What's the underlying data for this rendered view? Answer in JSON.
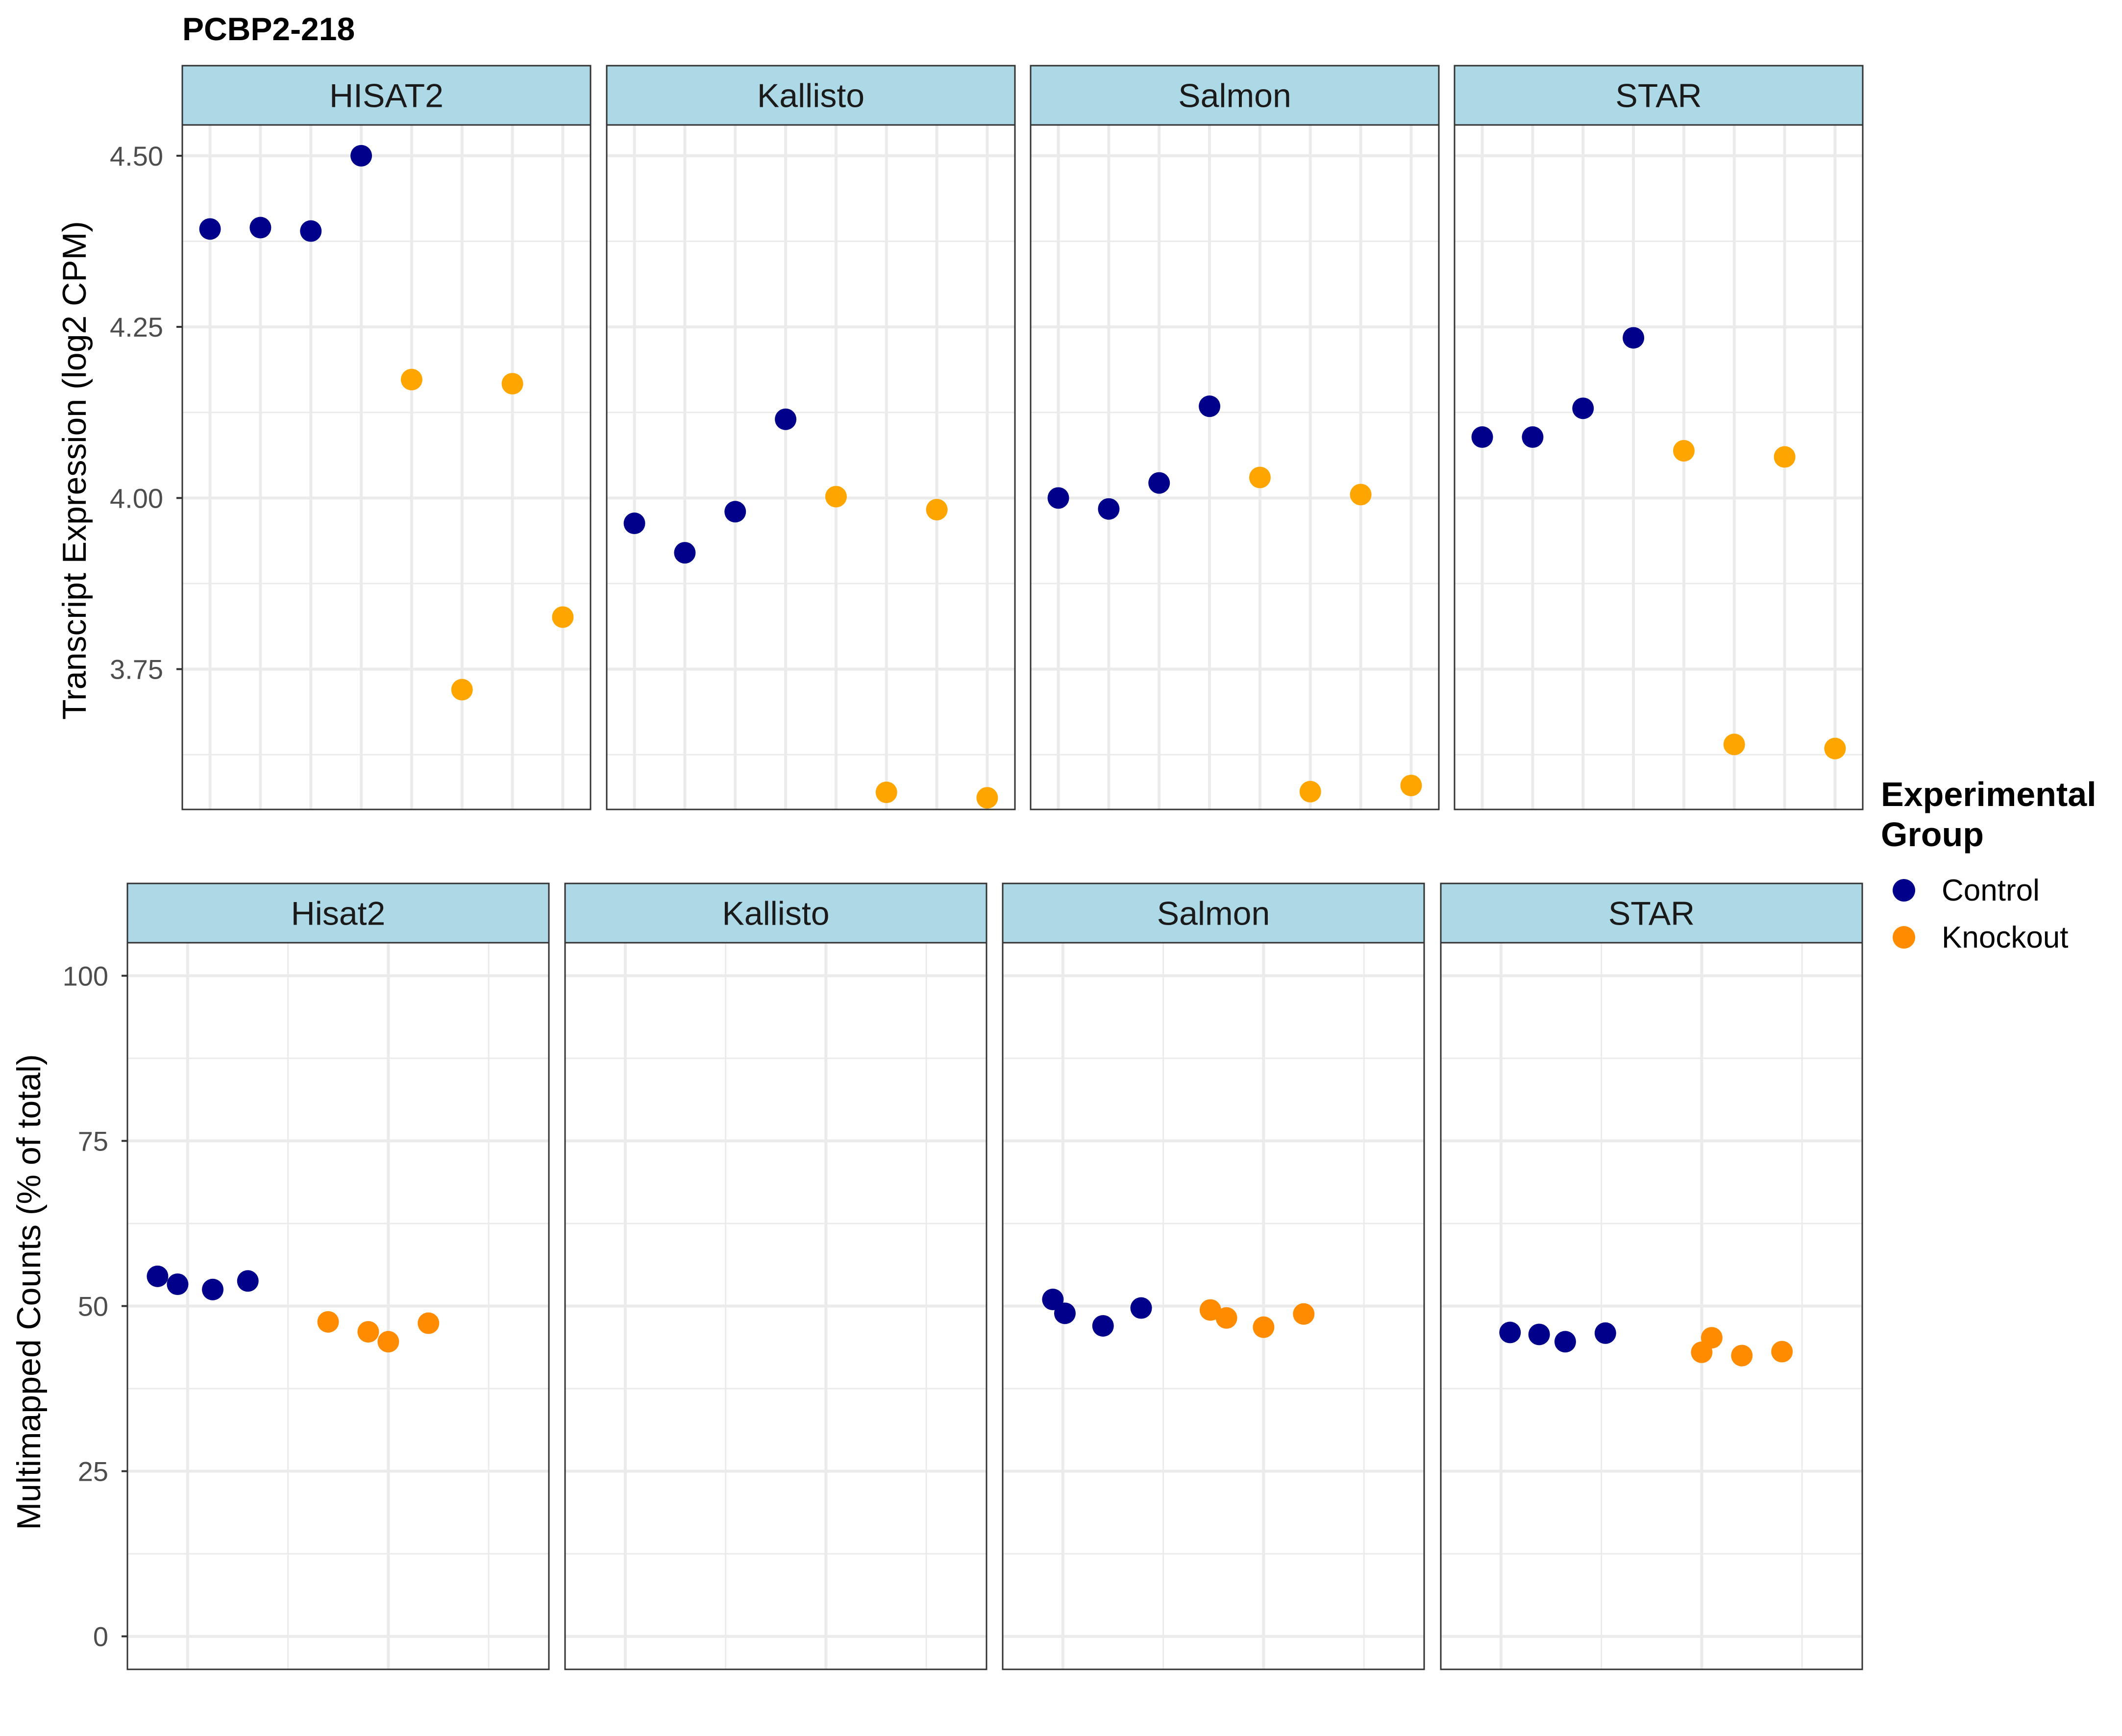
{
  "title": "PCBP2-218",
  "colors": {
    "control": "#00008B",
    "knockout_top": "#FFA500",
    "knockout_bottom": "#FF8C00",
    "strip_fill": "#ADD8E6",
    "grid": "#EBEBEB",
    "panel_border": "#333333"
  },
  "legend": {
    "title_line1": "Experimental",
    "title_line2": "Group",
    "items": [
      {
        "label": "Control",
        "color": "#00008B"
      },
      {
        "label": "Knockout",
        "color": "#FF8C00"
      }
    ]
  },
  "chart_data": [
    {
      "type": "scatter",
      "ylabel": "Transcript Expression (log2 CPM)",
      "yticks": [
        "3.75",
        "4.00",
        "4.25",
        "4.50"
      ],
      "ylim": [
        3.545,
        4.545
      ],
      "xlim": [
        0.45,
        8.55
      ],
      "grid": true,
      "facets": [
        {
          "label": "HISAT2",
          "control": [
            [
              1,
              4.393
            ],
            [
              2,
              4.395
            ],
            [
              3,
              4.39
            ],
            [
              4,
              4.5
            ]
          ],
          "knockout": [
            [
              5,
              4.173
            ],
            [
              6,
              3.72
            ],
            [
              7,
              4.167
            ],
            [
              8,
              3.826
            ]
          ]
        },
        {
          "label": "Kallisto",
          "control": [
            [
              1,
              3.963
            ],
            [
              2,
              3.92
            ],
            [
              3,
              3.98
            ],
            [
              4,
              4.115
            ]
          ],
          "knockout": [
            [
              5,
              4.002
            ],
            [
              6,
              3.57
            ],
            [
              7,
              3.983
            ],
            [
              8,
              3.562
            ]
          ]
        },
        {
          "label": "Salmon",
          "control": [
            [
              1,
              4.0
            ],
            [
              2,
              3.984
            ],
            [
              3,
              4.022
            ],
            [
              4,
              4.134
            ]
          ],
          "knockout": [
            [
              5,
              4.03
            ],
            [
              6,
              3.571
            ],
            [
              7,
              4.005
            ],
            [
              8,
              3.58
            ]
          ]
        },
        {
          "label": "STAR",
          "control": [
            [
              1,
              4.089
            ],
            [
              2,
              4.089
            ],
            [
              3,
              4.131
            ],
            [
              4,
              4.234
            ]
          ],
          "knockout": [
            [
              5,
              4.069
            ],
            [
              6,
              3.64
            ],
            [
              7,
              4.06
            ],
            [
              8,
              3.634
            ]
          ]
        }
      ]
    },
    {
      "type": "scatter",
      "ylabel": "Multimapped Counts (% of total)",
      "yticks": [
        "0",
        "25",
        "50",
        "75",
        "100"
      ],
      "ylim": [
        -5,
        105
      ],
      "xlim": [
        0.4,
        4.6
      ],
      "grid": true,
      "facets": [
        {
          "label": "Hisat2",
          "control": [
            [
              0.7,
              54.5
            ],
            [
              0.9,
              53.3
            ],
            [
              1.25,
              52.5
            ],
            [
              1.6,
              53.8
            ]
          ],
          "knockout": [
            [
              2.4,
              47.6
            ],
            [
              2.8,
              46.1
            ],
            [
              3.0,
              44.6
            ],
            [
              3.4,
              47.4
            ]
          ]
        },
        {
          "label": "Kallisto",
          "control": [],
          "knockout": []
        },
        {
          "label": "Salmon",
          "control": [
            [
              0.9,
              51.0
            ],
            [
              1.02,
              48.9
            ],
            [
              1.4,
              47.0
            ],
            [
              1.78,
              49.7
            ]
          ],
          "knockout": [
            [
              2.47,
              49.4
            ],
            [
              2.63,
              48.2
            ],
            [
              3.0,
              46.8
            ],
            [
              3.4,
              48.8
            ]
          ]
        },
        {
          "label": "STAR",
          "control": [
            [
              1.09,
              46.0
            ],
            [
              1.38,
              45.7
            ],
            [
              1.64,
              44.6
            ],
            [
              2.04,
              45.9
            ]
          ],
          "knockout": [
            [
              3.0,
              43.0
            ],
            [
              3.1,
              45.2
            ],
            [
              3.4,
              42.5
            ],
            [
              3.8,
              43.1
            ]
          ]
        }
      ]
    }
  ]
}
